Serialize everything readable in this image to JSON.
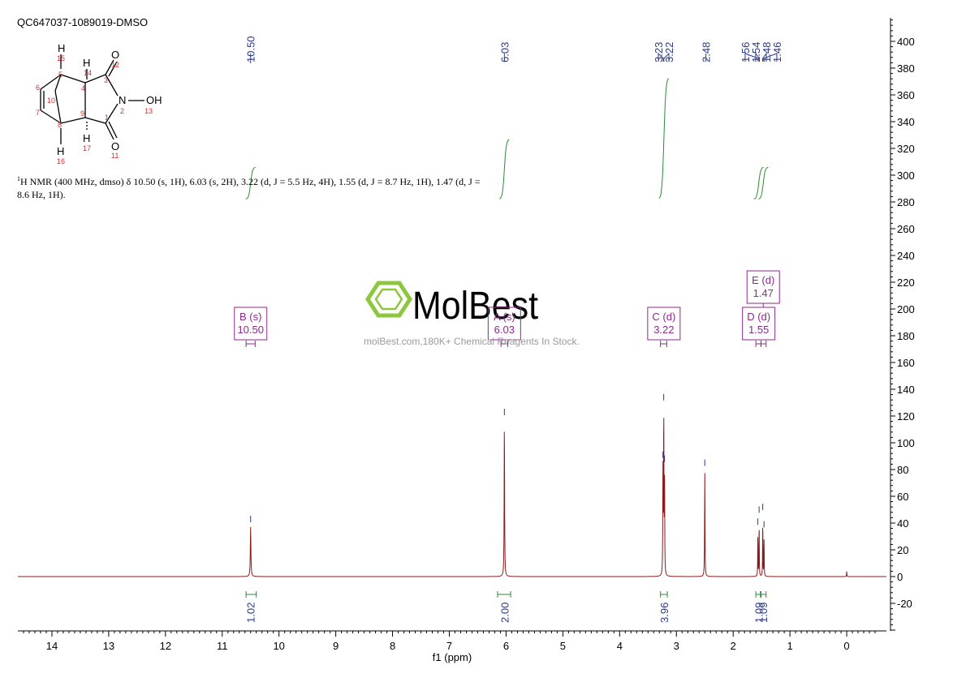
{
  "sample_id": "QC647037-1089019-DMSO",
  "nmr_description": {
    "prefix_sup": "1",
    "text": "H NMR (400 MHz, dmso) δ 10.50 (s, 1H), 6.03 (s, 2H), 3.22 (d, J = 5.5 Hz, 4H), 1.55 (d, J = 8.7 Hz, 1H), 1.47 (d, J = 8.6 Hz, 1H)."
  },
  "watermark": {
    "brand": "MolBest",
    "subtitle": "molBest.com,180K+ Chemical Reagents In Stock.",
    "color": "#8dc63f"
  },
  "molecule": {
    "atoms": [
      {
        "label": "H",
        "num": "15"
      },
      {
        "label": "H",
        "num": "14"
      },
      {
        "label": "O",
        "num": "12"
      },
      {
        "label": "N",
        "num": "2"
      },
      {
        "label": "OH",
        "num": "13"
      },
      {
        "label": "O",
        "num": "11"
      },
      {
        "label": "H",
        "num": "17"
      },
      {
        "label": "H",
        "num": "16"
      }
    ],
    "ring_numbers": [
      "5",
      "4",
      "3",
      "6",
      "10",
      "7",
      "8",
      "9",
      "1"
    ]
  },
  "chart_data": {
    "type": "line",
    "xlabel": "f1 (ppm)",
    "xlim": [
      14.6,
      -0.7
    ],
    "ylim": [
      -40,
      420
    ],
    "x_ticks": [
      14,
      13,
      12,
      11,
      10,
      9,
      8,
      7,
      6,
      5,
      4,
      3,
      2,
      1,
      0
    ],
    "y_ticks": [
      -20,
      0,
      20,
      40,
      60,
      80,
      100,
      120,
      140,
      160,
      180,
      200,
      220,
      240,
      260,
      280,
      300,
      320,
      340,
      360,
      380,
      400
    ],
    "peaks": [
      {
        "ppm": 10.5,
        "height": 37,
        "width": 0.012
      },
      {
        "ppm": 6.03,
        "height": 117,
        "width": 0.009
      },
      {
        "ppm": 3.237,
        "height": 85,
        "width": 0.007
      },
      {
        "ppm": 3.223,
        "height": 128,
        "width": 0.007
      },
      {
        "ppm": 3.209,
        "height": 82,
        "width": 0.007
      },
      {
        "ppm": 2.5,
        "height": 79,
        "width": 0.008
      },
      {
        "ppm": 1.565,
        "height": 35,
        "width": 0.006
      },
      {
        "ppm": 1.543,
        "height": 44,
        "width": 0.006
      },
      {
        "ppm": 1.479,
        "height": 46,
        "width": 0.006
      },
      {
        "ppm": 1.457,
        "height": 33,
        "width": 0.006
      },
      {
        "ppm": 0.0,
        "height": 4,
        "width": 0.006
      }
    ],
    "peak_labels": [
      "10.50",
      "6.03",
      "3.23",
      "3.22",
      "2.48",
      "1.56",
      "1.54",
      "1.48",
      "1.46"
    ],
    "peak_label_positions": [
      10.5,
      6.03,
      3.23,
      3.22,
      2.48,
      1.56,
      1.54,
      1.48,
      1.46
    ],
    "multiplets": [
      {
        "name": "B (s)",
        "value": "10.50",
        "ppm": 10.5,
        "range": [
          10.58,
          10.42
        ],
        "level": "low"
      },
      {
        "name": "A (s)",
        "value": "6.03",
        "ppm": 6.03,
        "range": [
          6.09,
          5.97
        ],
        "level": "low"
      },
      {
        "name": "C (d)",
        "value": "3.22",
        "ppm": 3.22,
        "range": [
          3.28,
          3.17
        ],
        "level": "low"
      },
      {
        "name": "D (d)",
        "value": "1.55",
        "ppm": 1.55,
        "range": [
          1.6,
          1.51
        ],
        "level": "low"
      },
      {
        "name": "E (d)",
        "value": "1.47",
        "ppm": 1.47,
        "range": [
          1.51,
          1.42
        ],
        "level": "high"
      }
    ],
    "integrals": [
      {
        "value": "1.02",
        "ppm": 10.5,
        "range": [
          10.58,
          10.4
        ],
        "y_start": 282,
        "y_end": 306
      },
      {
        "value": "2.00",
        "ppm": 6.03,
        "range": [
          6.15,
          5.92
        ],
        "y_start": 282,
        "y_end": 327
      },
      {
        "value": "3.96",
        "ppm": 3.22,
        "range": [
          3.28,
          3.16
        ],
        "y_start": 282,
        "y_end": 373
      },
      {
        "value": "1.09",
        "ppm": 1.55,
        "range": [
          1.6,
          1.51
        ],
        "y_start": 282,
        "y_end": 306
      },
      {
        "value": "1.09",
        "ppm": 1.47,
        "range": [
          1.52,
          1.42
        ],
        "y_start": 282,
        "y_end": 306
      }
    ],
    "colors": {
      "spectrum": "#8b1a1a",
      "peak_label": "#2b3a8c",
      "multiplet": "#8b2a8b",
      "integral": "#2e8b2e",
      "axis": "#000000"
    }
  }
}
